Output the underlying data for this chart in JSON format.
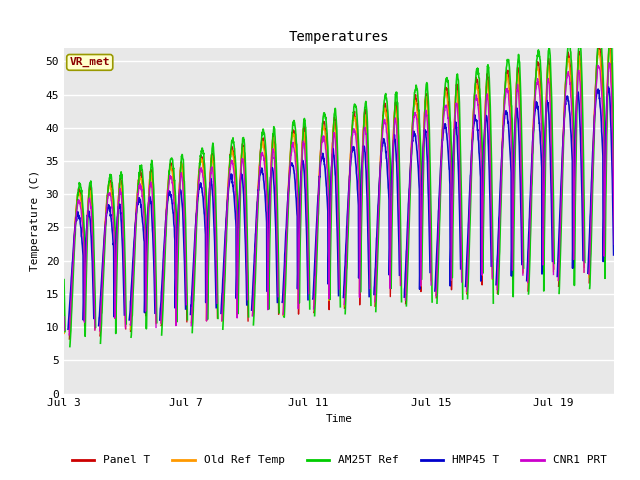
{
  "title": "Temperatures",
  "ylabel": "Temperature (C)",
  "xlabel": "Time",
  "annotation": "VR_met",
  "ylim": [
    0,
    52
  ],
  "yticks": [
    0,
    5,
    10,
    15,
    20,
    25,
    30,
    35,
    40,
    45,
    50
  ],
  "xlim": [
    3,
    21
  ],
  "xtick_positions": [
    3,
    7,
    11,
    15,
    19
  ],
  "xtick_labels": [
    "Jul 3",
    "Jul 7",
    "Jul 11",
    "Jul 15",
    "Jul 19"
  ],
  "plot_bg_color": "#e8e8e8",
  "white_bg": "#ffffff",
  "series": [
    {
      "label": "Panel T",
      "color": "#cc0000",
      "lw": 1.0
    },
    {
      "label": "Old Ref Temp",
      "color": "#ff9900",
      "lw": 1.0
    },
    {
      "label": "AM25T Ref",
      "color": "#00cc00",
      "lw": 1.2
    },
    {
      "label": "HMP45 T",
      "color": "#0000cc",
      "lw": 1.2
    },
    {
      "label": "CNR1 PRT",
      "color": "#cc00cc",
      "lw": 1.0
    }
  ],
  "font": "monospace",
  "title_fontsize": 10,
  "axis_fontsize": 8,
  "tick_fontsize": 8,
  "legend_fontsize": 8
}
